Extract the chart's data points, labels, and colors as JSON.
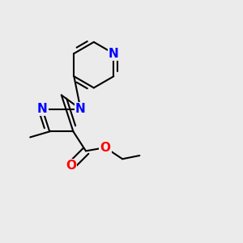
{
  "background_color": "#ebebeb",
  "bond_color": "#000000",
  "bond_width": 1.5,
  "figsize": [
    3.0,
    3.0
  ],
  "dpi": 100,
  "xlim": [
    0,
    1
  ],
  "ylim": [
    0,
    1
  ]
}
